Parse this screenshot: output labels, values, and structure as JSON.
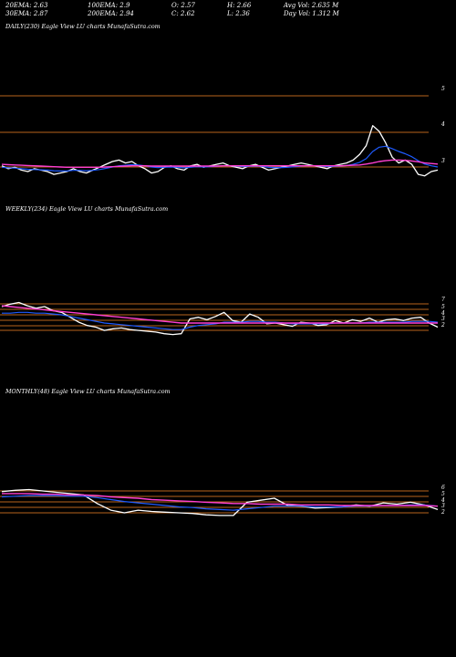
{
  "header": {
    "row1": [
      "20EMA: 2.63",
      "100EMA: 2.9",
      "O: 2.57",
      "H: 2.66",
      "Avg Vol: 2.635  M"
    ],
    "row2": [
      "30EMA: 2.87",
      "200EMA: 2.94",
      "C: 2.62",
      "L: 2.36",
      "Day Vol: 1.312  M"
    ]
  },
  "panels": {
    "daily": {
      "label": "DAILY(230) Eagle   View  LU  charts MunafaSutra.com"
    },
    "weekly": {
      "label": "WEEKLY(234) Eagle   View  LU  charts MunafaSutra.com"
    },
    "monthly": {
      "label": "MONTHLY(48) Eagle   View  LU  charts MunafaSutra.com"
    }
  },
  "colors": {
    "background": "#000000",
    "level_line": "#b8651b",
    "price": "#ffffff",
    "ema_fast": "#1e5bff",
    "ema_slow": "#ff3fd2",
    "ema_mid": "#e8a020"
  },
  "chart_data": [
    {
      "type": "line",
      "title": "DAILY(230)",
      "ytick_labels": [
        "5",
        "4",
        "3"
      ],
      "ylim": [
        2,
        5.5
      ],
      "series": [
        {
          "name": "price",
          "values": [
            2.9,
            2.8,
            2.85,
            2.75,
            2.7,
            2.8,
            2.75,
            2.7,
            2.6,
            2.65,
            2.7,
            2.8,
            2.7,
            2.65,
            2.75,
            2.85,
            2.95,
            3.05,
            3.1,
            3.0,
            3.05,
            2.9,
            2.8,
            2.65,
            2.7,
            2.85,
            2.9,
            2.8,
            2.75,
            2.9,
            2.95,
            2.85,
            2.9,
            2.95,
            3.0,
            2.9,
            2.85,
            2.8,
            2.9,
            2.95,
            2.85,
            2.75,
            2.8,
            2.85,
            2.9,
            2.95,
            3.0,
            2.95,
            2.9,
            2.85,
            2.8,
            2.9,
            2.95,
            3.0,
            3.1,
            3.3,
            3.6,
            4.3,
            4.1,
            3.7,
            3.2,
            3.0,
            3.1,
            2.95,
            2.6,
            2.55,
            2.7,
            2.75
          ]
        },
        {
          "name": "ema_fast",
          "values": [
            2.85,
            2.83,
            2.82,
            2.8,
            2.78,
            2.77,
            2.76,
            2.75,
            2.73,
            2.72,
            2.72,
            2.74,
            2.74,
            2.73,
            2.74,
            2.77,
            2.81,
            2.86,
            2.9,
            2.92,
            2.94,
            2.93,
            2.9,
            2.86,
            2.84,
            2.85,
            2.86,
            2.85,
            2.83,
            2.85,
            2.87,
            2.86,
            2.87,
            2.88,
            2.9,
            2.9,
            2.89,
            2.87,
            2.88,
            2.89,
            2.88,
            2.85,
            2.84,
            2.84,
            2.85,
            2.87,
            2.89,
            2.9,
            2.9,
            2.89,
            2.87,
            2.88,
            2.89,
            2.91,
            2.95,
            3.02,
            3.15,
            3.4,
            3.55,
            3.58,
            3.5,
            3.4,
            3.32,
            3.22,
            3.08,
            2.96,
            2.9,
            2.86
          ]
        },
        {
          "name": "ema_slow",
          "values": [
            2.95,
            2.94,
            2.93,
            2.92,
            2.91,
            2.9,
            2.89,
            2.88,
            2.87,
            2.86,
            2.85,
            2.85,
            2.85,
            2.85,
            2.85,
            2.85,
            2.86,
            2.87,
            2.88,
            2.89,
            2.9,
            2.9,
            2.9,
            2.89,
            2.89,
            2.89,
            2.89,
            2.89,
            2.89,
            2.89,
            2.89,
            2.89,
            2.89,
            2.89,
            2.9,
            2.9,
            2.9,
            2.9,
            2.9,
            2.9,
            2.9,
            2.9,
            2.9,
            2.9,
            2.9,
            2.9,
            2.9,
            2.9,
            2.9,
            2.9,
            2.9,
            2.9,
            2.9,
            2.91,
            2.92,
            2.93,
            2.96,
            3.0,
            3.05,
            3.08,
            3.1,
            3.1,
            3.09,
            3.07,
            3.04,
            3.0,
            2.98,
            2.96
          ]
        }
      ]
    },
    {
      "type": "line",
      "title": "WEEKLY(234)",
      "ytick_labels": [
        "7",
        "5",
        "4",
        "3",
        "2"
      ],
      "ylim": [
        1.5,
        7.5
      ],
      "series": [
        {
          "name": "price",
          "values": [
            5.5,
            5.8,
            6.0,
            5.6,
            5.3,
            5.5,
            5.0,
            4.8,
            4.2,
            3.6,
            3.2,
            3.0,
            2.6,
            2.8,
            2.9,
            2.7,
            2.6,
            2.5,
            2.4,
            2.2,
            2.1,
            2.2,
            4.0,
            4.2,
            3.9,
            4.3,
            4.8,
            3.8,
            3.6,
            4.6,
            4.2,
            3.4,
            3.5,
            3.3,
            3.1,
            3.6,
            3.5,
            3.2,
            3.3,
            3.8,
            3.5,
            3.9,
            3.7,
            4.1,
            3.6,
            3.9,
            4.0,
            3.8,
            4.1,
            4.2,
            3.5,
            3.0
          ]
        },
        {
          "name": "ema_fast",
          "values": [
            4.7,
            4.7,
            4.8,
            4.8,
            4.7,
            4.7,
            4.6,
            4.5,
            4.3,
            4.1,
            3.9,
            3.7,
            3.5,
            3.4,
            3.3,
            3.2,
            3.1,
            3.0,
            2.9,
            2.8,
            2.7,
            2.7,
            3.0,
            3.2,
            3.3,
            3.4,
            3.6,
            3.6,
            3.6,
            3.7,
            3.7,
            3.6,
            3.6,
            3.5,
            3.4,
            3.4,
            3.4,
            3.4,
            3.4,
            3.5,
            3.5,
            3.5,
            3.5,
            3.6,
            3.6,
            3.6,
            3.6,
            3.6,
            3.7,
            3.7,
            3.7,
            3.6
          ]
        },
        {
          "name": "ema_slow",
          "values": [
            5.6,
            5.5,
            5.4,
            5.3,
            5.2,
            5.1,
            5.0,
            4.9,
            4.8,
            4.7,
            4.6,
            4.5,
            4.4,
            4.3,
            4.2,
            4.1,
            4.0,
            3.9,
            3.8,
            3.7,
            3.6,
            3.5,
            3.5,
            3.5,
            3.5,
            3.5,
            3.5,
            3.5,
            3.5,
            3.5,
            3.5,
            3.5,
            3.5,
            3.5,
            3.5,
            3.5,
            3.5,
            3.5,
            3.5,
            3.5,
            3.5,
            3.5,
            3.5,
            3.5,
            3.5,
            3.5,
            3.5,
            3.5,
            3.5,
            3.5,
            3.5,
            3.5
          ]
        }
      ]
    },
    {
      "type": "line",
      "title": "MONTHLY(48)",
      "ytick_labels": [
        "6",
        "5",
        "4",
        "3",
        "2"
      ],
      "ylim": [
        1.5,
        7.0
      ],
      "series": [
        {
          "name": "price",
          "values": [
            5.8,
            6.0,
            6.1,
            5.9,
            5.7,
            5.5,
            5.3,
            4.0,
            3.0,
            2.6,
            3.0,
            2.8,
            2.7,
            2.6,
            2.5,
            2.3,
            2.2,
            2.2,
            4.2,
            4.5,
            4.8,
            3.7,
            3.6,
            3.3,
            3.4,
            3.5,
            3.8,
            3.6,
            4.1,
            3.9,
            4.2,
            3.8,
            3.1
          ]
        },
        {
          "name": "ema_fast",
          "values": [
            5.0,
            5.1,
            5.2,
            5.2,
            5.2,
            5.1,
            5.1,
            4.9,
            4.6,
            4.3,
            4.1,
            3.9,
            3.7,
            3.5,
            3.4,
            3.2,
            3.1,
            3.0,
            3.2,
            3.4,
            3.6,
            3.6,
            3.6,
            3.5,
            3.5,
            3.5,
            3.6,
            3.6,
            3.7,
            3.7,
            3.8,
            3.8,
            3.6
          ]
        },
        {
          "name": "ema_slow",
          "values": [
            5.5,
            5.5,
            5.5,
            5.4,
            5.4,
            5.3,
            5.3,
            5.2,
            5.0,
            4.9,
            4.8,
            4.6,
            4.5,
            4.4,
            4.3,
            4.2,
            4.1,
            4.0,
            4.0,
            3.9,
            3.9,
            3.9,
            3.8,
            3.8,
            3.8,
            3.7,
            3.7,
            3.7,
            3.7,
            3.7,
            3.7,
            3.7,
            3.6
          ]
        }
      ]
    }
  ]
}
